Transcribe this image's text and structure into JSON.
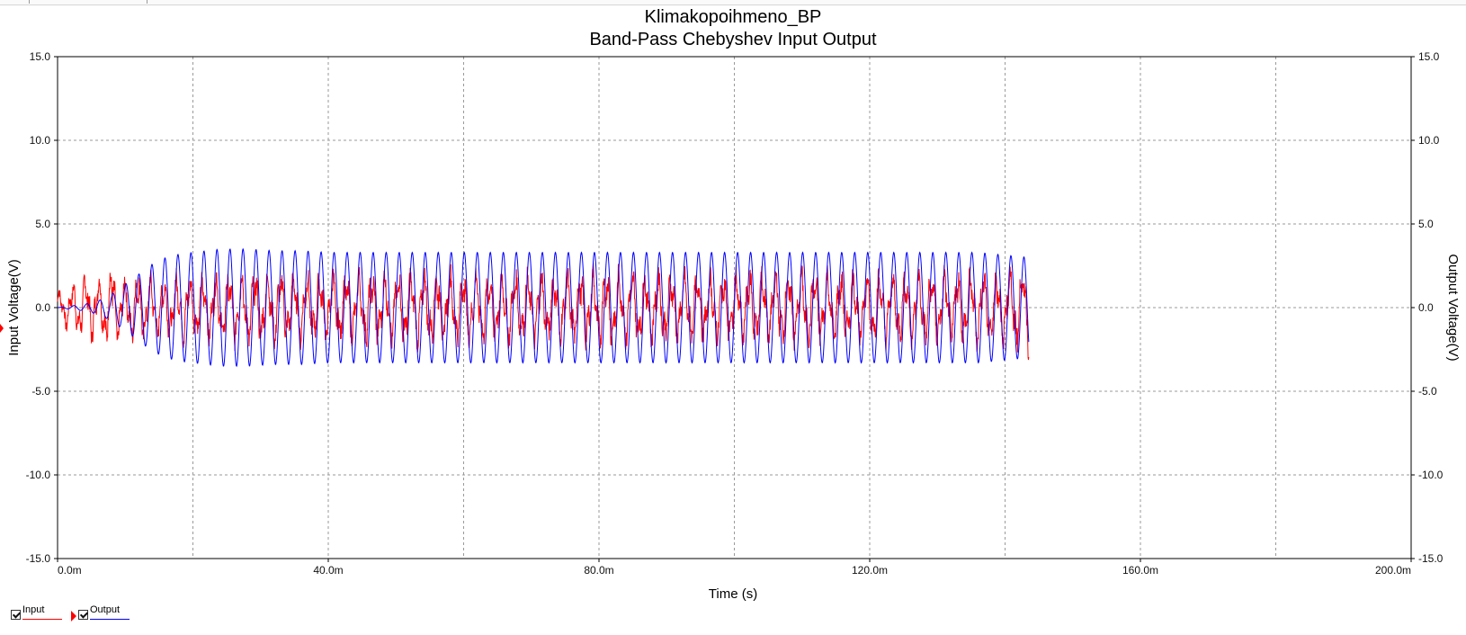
{
  "chart_data": {
    "type": "line",
    "title": "Klimakopoihmeno_BP",
    "subtitle": "Band-Pass Chebyshev Input Output",
    "xlabel": "Time (s)",
    "ylabel_left": "Input Voltage(V)",
    "ylabel_right": "Output Voltage(V)",
    "xlim": [
      0,
      0.2
    ],
    "ylim": [
      -15,
      15
    ],
    "x_tick_values": [
      0,
      0.04,
      0.08,
      0.12,
      0.16,
      0.2
    ],
    "x_tick_labels": [
      "0.0m",
      "40.0m",
      "80.0m",
      "120.0m",
      "160.0m",
      "200.0m"
    ],
    "y_tick_values": [
      15,
      10,
      5,
      0,
      -5,
      -10,
      -15
    ],
    "y_tick_labels": [
      "15.0",
      "10.0",
      "5.0",
      "0.0",
      "-5.0",
      "-10.0",
      "-15.0"
    ],
    "grid": true,
    "legend_position": "bottom-left",
    "series": [
      {
        "name": "Input",
        "color": "#ff0000",
        "axis": "left",
        "x": [
          0,
          0.002,
          0.004,
          0.006,
          0.008,
          0.01,
          0.012,
          0.014,
          0.016,
          0.018,
          0.02,
          0.024,
          0.028,
          0.032,
          0.036,
          0.04,
          0.048,
          0.056,
          0.064,
          0.072,
          0.08,
          0.088,
          0.096,
          0.104,
          0.112,
          0.12,
          0.128,
          0.136,
          0.1435
        ],
        "y": [
          1.2,
          -1.6,
          2.4,
          -2.1,
          3.0,
          -2.0,
          2.6,
          -2.2,
          2.0,
          -2.4,
          2.1,
          -2.5,
          2.6,
          -2.6,
          2.4,
          -2.3,
          2.5,
          -2.6,
          2.4,
          -2.4,
          2.6,
          -2.5,
          2.3,
          -2.6,
          2.5,
          -2.4,
          2.5,
          -2.6,
          -3.0
        ]
      },
      {
        "name": "Output",
        "color": "#0000ff",
        "axis": "right",
        "x": [
          0,
          0.002,
          0.004,
          0.006,
          0.008,
          0.01,
          0.012,
          0.014,
          0.016,
          0.018,
          0.02,
          0.024,
          0.028,
          0.032,
          0.036,
          0.04,
          0.048,
          0.056,
          0.064,
          0.072,
          0.08,
          0.088,
          0.096,
          0.104,
          0.112,
          0.12,
          0.128,
          0.136,
          0.1435
        ],
        "y": [
          0.0,
          0.1,
          -0.2,
          0.4,
          -0.8,
          1.4,
          -2.0,
          2.6,
          -3.0,
          3.2,
          -3.3,
          3.5,
          -3.5,
          3.4,
          -3.4,
          3.3,
          -3.3,
          3.3,
          -3.3,
          3.3,
          -3.3,
          3.3,
          -3.3,
          3.3,
          -3.3,
          3.3,
          -3.3,
          3.3,
          -3.0
        ]
      }
    ]
  }
}
